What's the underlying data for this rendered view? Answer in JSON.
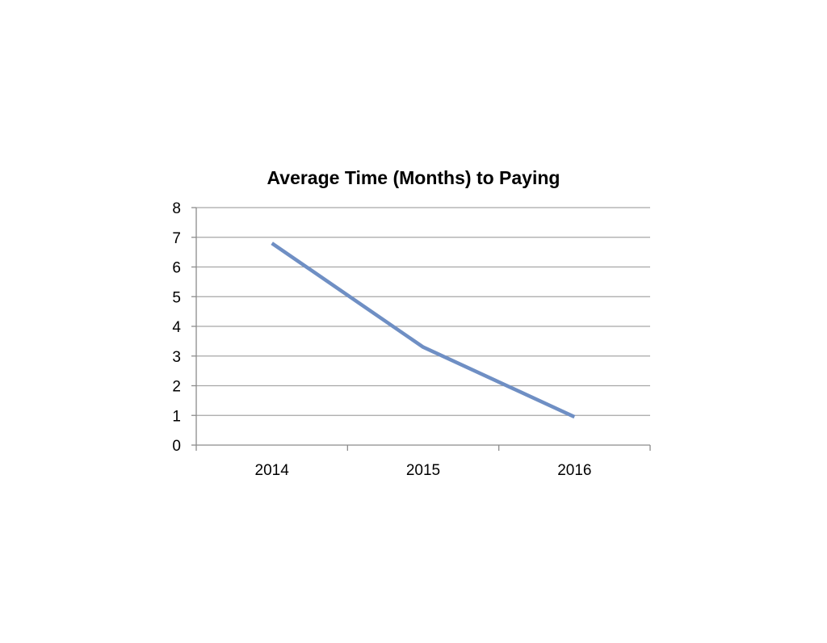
{
  "chart_data": {
    "type": "line",
    "title": "Average Time (Months) to Paying",
    "xlabel": "",
    "ylabel": "",
    "categories": [
      "2014",
      "2015",
      "2016"
    ],
    "series": [
      {
        "values": [
          6.8,
          3.3,
          0.95
        ]
      }
    ],
    "ylim": [
      0,
      8
    ],
    "yticks": [
      "0",
      "1",
      "2",
      "3",
      "4",
      "5",
      "6",
      "7",
      "8"
    ],
    "grid": true,
    "legend": "none",
    "colors": {
      "line": "#6f8fc4",
      "grid": "#a6a6a6",
      "axis": "#8c8c8c",
      "text": "#000000"
    }
  }
}
